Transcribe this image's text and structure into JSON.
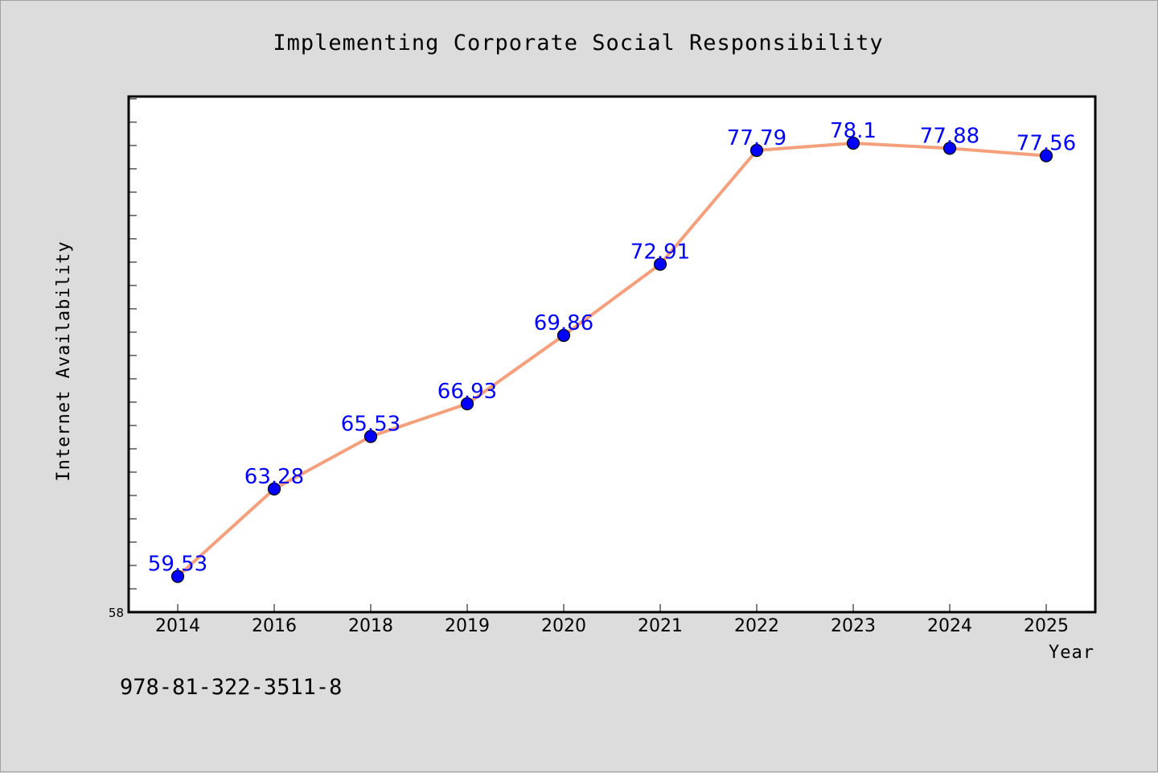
{
  "footer": {
    "code": "978-81-322-3511-8"
  },
  "chart_data": {
    "type": "line",
    "title": "Implementing Corporate Social Responsibility",
    "xlabel": "Year",
    "ylabel": "Internet Availability",
    "categories": [
      "2014",
      "2016",
      "2018",
      "2019",
      "2020",
      "2021",
      "2022",
      "2023",
      "2024",
      "2025"
    ],
    "series": [
      {
        "values": [
          59.53,
          63.28,
          65.53,
          66.93,
          69.86,
          72.91,
          77.79,
          78.1,
          77.88,
          77.56
        ]
      }
    ],
    "ylim": [
      58,
      80.1
    ],
    "yticks_labeled": [
      "58"
    ],
    "grid": false,
    "legend": "none",
    "colors": {
      "line": "#f4a07c",
      "marker": "#0000ff",
      "label": "#0000ff",
      "background": "#dcdcdc",
      "plot_bg": "#ffffff"
    }
  }
}
